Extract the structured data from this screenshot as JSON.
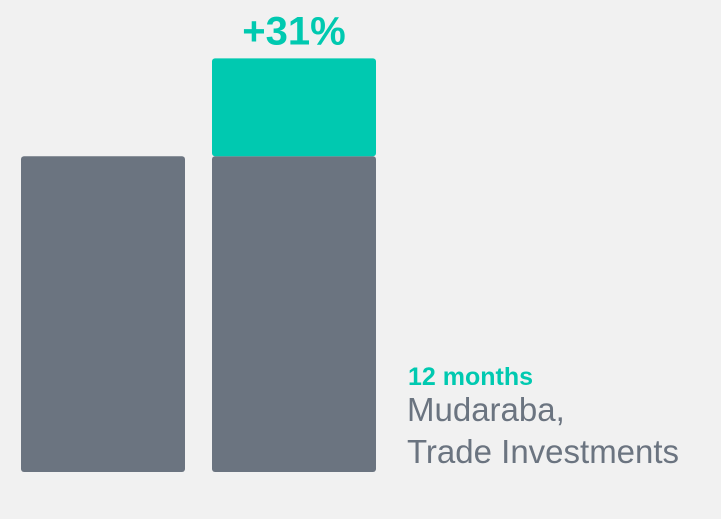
{
  "chart_data": {
    "type": "bar",
    "stacked": true,
    "categories": [
      null,
      null
    ],
    "series": [
      {
        "color": "#6b7480",
        "values": [
          100,
          100
        ]
      },
      {
        "color": "#00c9b0",
        "values": [
          null,
          31
        ],
        "value_labels": [
          null,
          "+31%"
        ]
      }
    ],
    "ylim": [
      0,
      140
    ],
    "annotation": {
      "title": "12 months",
      "lines": [
        "Mudaraba,",
        "Trade Investments"
      ],
      "title_color": "#00c9b0",
      "color": "#6b7480"
    }
  }
}
